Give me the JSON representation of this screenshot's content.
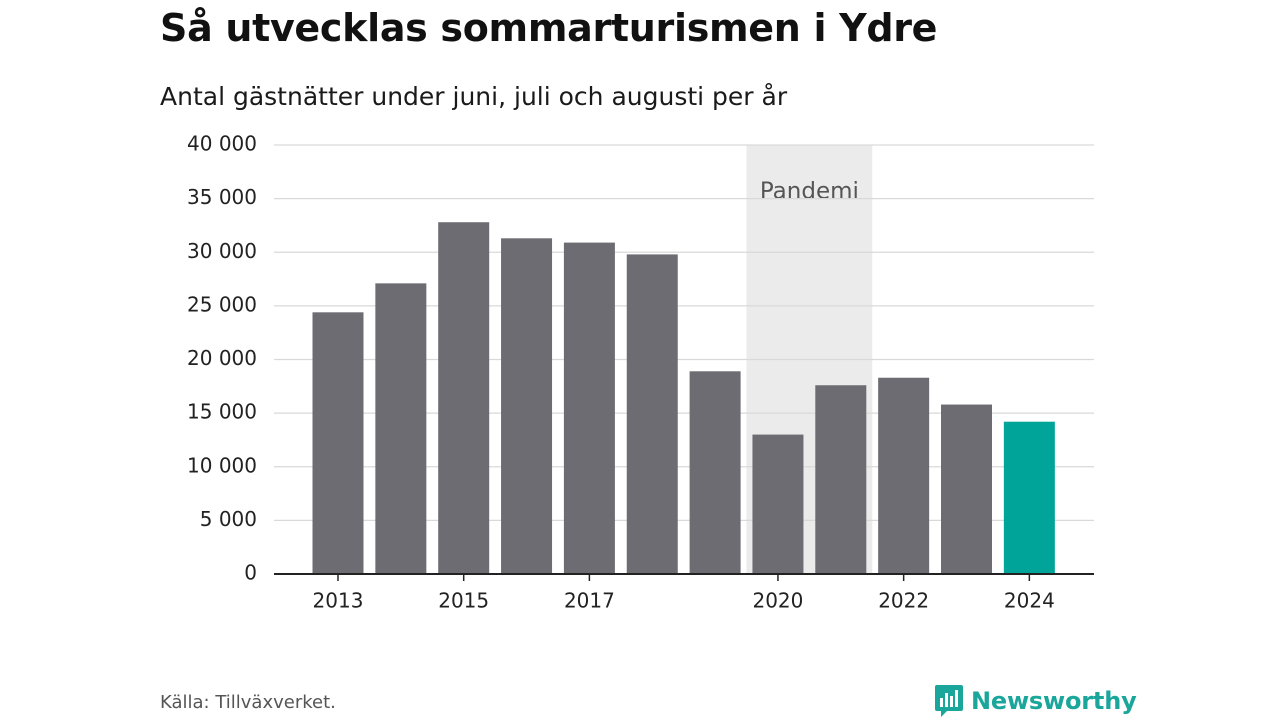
{
  "title": "Så utvecklas sommarturismen i Ydre",
  "subtitle": "Antal gästnätter under juni, juli och augusti per år",
  "source": "Källa: Tillväxverket.",
  "brand": {
    "name": "Newsworthy",
    "icon": "newsworthy-logo-icon",
    "color": "#1aa69a"
  },
  "colors": {
    "bar": "#6d6c72",
    "highlight": "#00a499",
    "pandemic_band": "#ebebeb",
    "grid": "#d9d9d9",
    "axis": "#222222"
  },
  "chart_data": {
    "type": "bar",
    "title": "Så utvecklas sommarturismen i Ydre",
    "subtitle": "Antal gästnätter under juni, juli och augusti per år",
    "categories": [
      "2013",
      "2014",
      "2015",
      "2016",
      "2017",
      "2018",
      "2019",
      "2020",
      "2021",
      "2022",
      "2023",
      "2024"
    ],
    "values": [
      24400,
      27100,
      32800,
      31300,
      30900,
      29800,
      18900,
      13000,
      17600,
      18300,
      15800,
      14200
    ],
    "highlight_category": "2024",
    "x_tick_labels": [
      "2013",
      "2015",
      "2017",
      "2020",
      "2022",
      "2024"
    ],
    "ylim": [
      0,
      40000
    ],
    "y_ticks": [
      0,
      5000,
      10000,
      15000,
      20000,
      25000,
      30000,
      35000,
      40000
    ],
    "y_tick_labels": [
      "0",
      "5 000",
      "10 000",
      "15 000",
      "20 000",
      "25 000",
      "30 000",
      "35 000",
      "40 000"
    ],
    "grid": true,
    "annotations": [
      {
        "type": "band",
        "label": "Pandemi",
        "from": "2020",
        "to": "2021"
      }
    ]
  }
}
